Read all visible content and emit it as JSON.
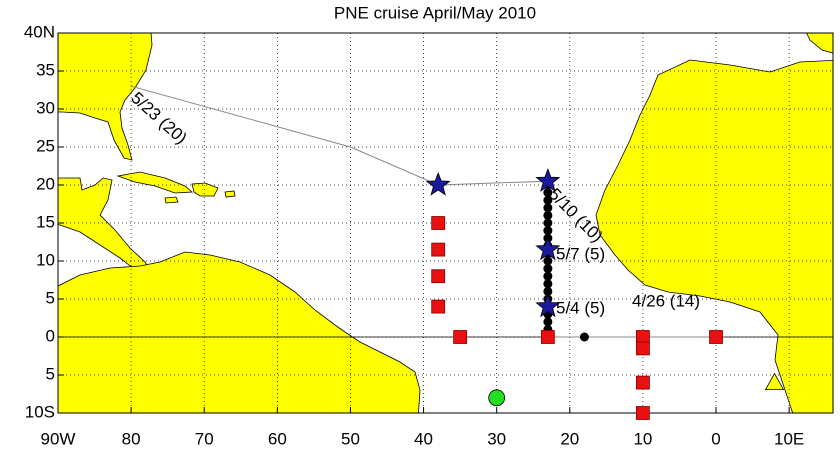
{
  "chart_data": {
    "type": "map",
    "title": "PNE cruise April/May 2010",
    "xlim": [
      -90,
      16
    ],
    "ylim": [
      -10,
      40
    ],
    "xticks": [
      {
        "value": -90,
        "label": "90W"
      },
      {
        "value": -80,
        "label": "80"
      },
      {
        "value": -70,
        "label": "70"
      },
      {
        "value": -60,
        "label": "60"
      },
      {
        "value": -50,
        "label": "50"
      },
      {
        "value": -40,
        "label": "40"
      },
      {
        "value": -30,
        "label": "30"
      },
      {
        "value": -20,
        "label": "20"
      },
      {
        "value": -10,
        "label": "10"
      },
      0,
      {
        "value": 10,
        "label": "10E"
      }
    ],
    "yticks": [
      {
        "value": 40,
        "label": "40N"
      },
      35,
      30,
      25,
      20,
      15,
      10,
      5,
      0,
      {
        "value": -5,
        "label": "5"
      },
      {
        "value": -10,
        "label": "10S"
      }
    ],
    "grid": true,
    "zero_line": true,
    "track": {
      "color": "#888888",
      "x": [
        0,
        -18,
        -23,
        -23,
        -38,
        -50,
        -80
      ],
      "y": [
        0,
        0,
        0,
        20.5,
        20,
        25,
        33
      ]
    },
    "dots": {
      "color": "#000000",
      "x": [
        -18,
        -23,
        -23,
        -23,
        -23,
        -23,
        -23,
        -23,
        -23,
        -23,
        -23,
        -23,
        -23,
        -23,
        -23,
        -23,
        -23,
        -23,
        -23,
        -23,
        -23,
        -23
      ],
      "y": [
        0,
        0,
        1,
        2,
        3,
        4,
        5,
        6,
        7,
        8,
        9,
        10,
        11,
        12,
        13,
        14,
        15,
        16,
        17,
        18,
        19,
        20
      ]
    },
    "stations": {
      "color": "#e81010",
      "x": [
        -38,
        -38,
        -38,
        -38,
        -35,
        -23,
        -10,
        -10,
        -10,
        -10,
        0
      ],
      "y": [
        15,
        11.5,
        8,
        4,
        0,
        0,
        0,
        -1.5,
        -6,
        -10,
        0
      ]
    },
    "stars": {
      "color": "#1a1a9c",
      "x": [
        -38,
        -23,
        -23,
        -23
      ],
      "y": [
        20,
        20.5,
        11.5,
        4
      ]
    },
    "circle": {
      "color": "#22dd22",
      "x": [
        -30
      ],
      "y": [
        -8
      ]
    },
    "triangle": {
      "color": "#ffff00",
      "x": [
        8
      ],
      "y": [
        -6
      ]
    },
    "annotations": [
      "5/23 (20)",
      "5/10 (10)",
      "5/7 (5)",
      "5/4 (5)",
      "4/26 (14)"
    ]
  }
}
